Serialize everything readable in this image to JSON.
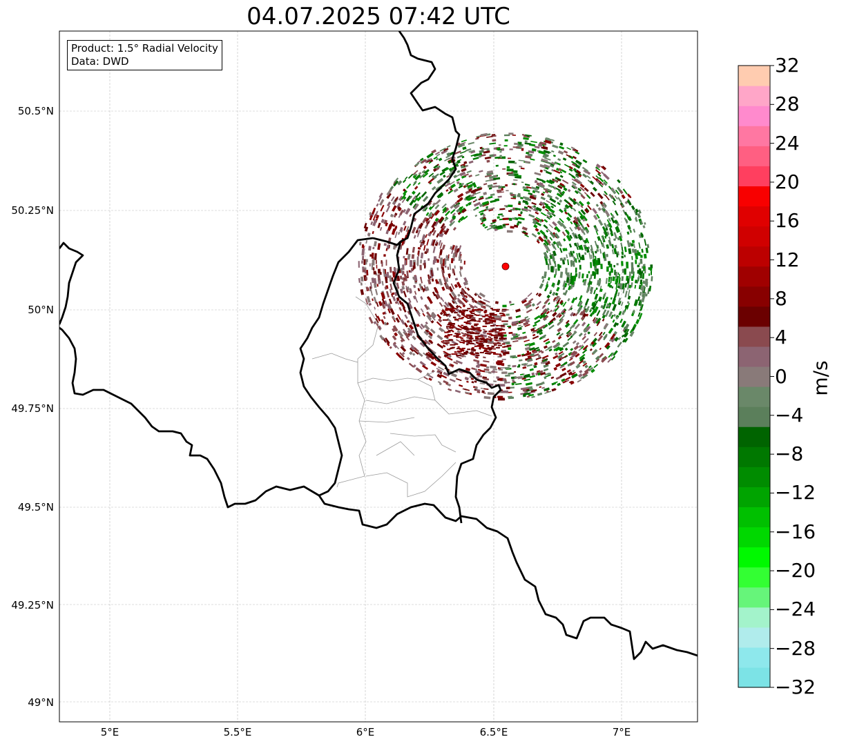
{
  "title": "04.07.2025 07:42 UTC",
  "info": {
    "product": "Product: 1.5° Radial Velocity",
    "data": "Data: DWD"
  },
  "lat_labels": [
    "50.5°N",
    "50.25°N",
    "50°N",
    "49.75°N",
    "49.5°N",
    "49.25°N",
    "49°N"
  ],
  "lon_labels": [
    "5°E",
    "5.5°E",
    "6°E",
    "6.5°E",
    "7°E"
  ],
  "colorbar": {
    "unit": "m/s",
    "min": -32,
    "max": 32,
    "tick_labels": [
      "32",
      "28",
      "24",
      "20",
      "16",
      "12",
      "8",
      "4",
      "0",
      "−4",
      "−8",
      "−12",
      "−16",
      "−20",
      "−24",
      "−28",
      "−32"
    ],
    "colors_bottom_to_top": [
      "#7ce3e6",
      "#8ee8ec",
      "#b0ecec",
      "#a3f3cb",
      "#66f57a",
      "#33ff33",
      "#00f900",
      "#00d800",
      "#00c000",
      "#00a400",
      "#008c00",
      "#007800",
      "#006400",
      "#5b7f5b",
      "#6a8869",
      "#897a79",
      "#8c6472",
      "#8a4a4f",
      "#6b0000",
      "#880000",
      "#a00000",
      "#bc0000",
      "#d00000",
      "#e00000",
      "#f80000",
      "#ff3f5f",
      "#ff5f82",
      "#ff77a2",
      "#ff8acd",
      "#ffa6c8",
      "#ffccb0"
    ]
  },
  "radar": {
    "site_lat": 50.11,
    "site_lon": 6.55,
    "site_color": "#ff0000"
  }
}
